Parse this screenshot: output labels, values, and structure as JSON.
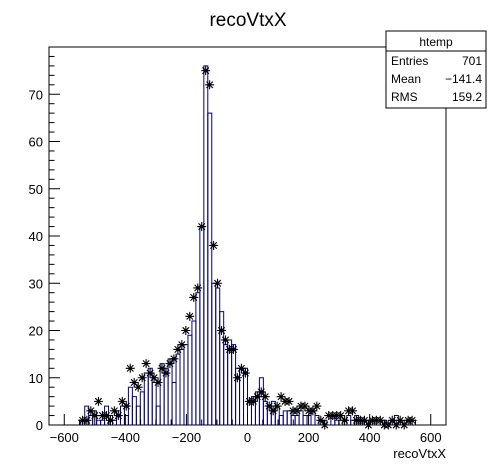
{
  "chart_data": {
    "type": "histogram",
    "title": "recoVtxX",
    "xlabel": "recoVtxX",
    "ylabel": "",
    "xlim": [
      -650,
      650
    ],
    "ylim": [
      0,
      80
    ],
    "xticks": [
      "−600",
      "−400",
      "−200",
      "0",
      "200",
      "400",
      "600"
    ],
    "xtick_values": [
      -600,
      -400,
      -200,
      0,
      200,
      400,
      600
    ],
    "yticks": [
      "0",
      "10",
      "20",
      "30",
      "40",
      "50",
      "60",
      "70"
    ],
    "ytick_values": [
      0,
      10,
      20,
      30,
      40,
      50,
      60,
      70
    ],
    "bin_width": 13,
    "bin_low_edges": [
      -546,
      -533,
      -520,
      -507,
      -494,
      -481,
      -468,
      -455,
      -442,
      -429,
      -416,
      -403,
      -390,
      -377,
      -364,
      -351,
      -338,
      -325,
      -312,
      -299,
      -286,
      -273,
      -260,
      -247,
      -234,
      -221,
      -208,
      -195,
      -182,
      -169,
      -156,
      -143,
      -130,
      -117,
      -104,
      -91,
      -78,
      -65,
      -52,
      -39,
      -26,
      -13,
      0,
      13,
      26,
      39,
      52,
      65,
      78,
      91,
      104,
      117,
      130,
      143,
      156,
      169,
      182,
      195,
      208,
      221,
      234,
      247,
      260,
      273,
      286,
      299,
      312,
      325,
      338,
      351,
      364,
      377,
      390,
      403,
      416,
      429,
      442,
      455,
      468,
      481,
      494,
      507,
      520,
      533
    ],
    "bin_counts": [
      1,
      4,
      2,
      3,
      1,
      1,
      4,
      2,
      1,
      3,
      4,
      2,
      8,
      6,
      4,
      7,
      11,
      12,
      9,
      4,
      13,
      12,
      14,
      9,
      15,
      16,
      17,
      19,
      22,
      28,
      42,
      76,
      66,
      30,
      29,
      24,
      17,
      18,
      17,
      12,
      12,
      12,
      5,
      6,
      7,
      10,
      5,
      4,
      5,
      4,
      2,
      3,
      3,
      2,
      2,
      3,
      2,
      2,
      3,
      2,
      1,
      1,
      0,
      2,
      1,
      1,
      0,
      2,
      1,
      2,
      1,
      1,
      1,
      1,
      0,
      0,
      1,
      0,
      1,
      2,
      1,
      0,
      1,
      0
    ],
    "markers": {
      "x": [
        -540,
        -526,
        -513,
        -500,
        -488,
        -475,
        -462,
        -449,
        -436,
        -423,
        -410,
        -397,
        -384,
        -371,
        -358,
        -345,
        -332,
        -319,
        -306,
        -293,
        -280,
        -267,
        -254,
        -241,
        -228,
        -215,
        -202,
        -189,
        -176,
        -163,
        -150,
        -137,
        -124,
        -111,
        -98,
        -85,
        -72,
        -59,
        -46,
        -33,
        -20,
        -7,
        6,
        19,
        32,
        45,
        58,
        71,
        84,
        97,
        110,
        123,
        136,
        149,
        162,
        175,
        188,
        201,
        214,
        227,
        240,
        253,
        266,
        279,
        292,
        305,
        318,
        331,
        344,
        357,
        370,
        383,
        396,
        409,
        422,
        435,
        448,
        461,
        474,
        487,
        500,
        513,
        526,
        539
      ],
      "y": [
        1,
        1,
        3,
        2,
        5,
        2,
        2,
        1,
        3,
        2,
        5,
        4,
        12,
        9,
        8,
        10,
        13,
        11,
        10,
        9,
        12,
        11,
        13,
        14,
        16,
        17,
        20,
        23,
        27,
        29,
        42,
        75,
        72,
        38,
        30,
        20,
        18,
        16,
        16,
        10,
        12,
        11,
        5,
        5,
        6,
        7,
        6,
        4,
        3,
        4,
        6,
        5,
        5,
        3,
        3,
        4,
        4,
        3,
        3,
        4,
        1,
        0,
        2,
        2,
        2,
        2,
        1,
        3,
        3,
        1,
        1,
        1,
        0,
        1,
        1,
        1,
        0,
        0,
        1,
        0,
        1,
        0,
        1,
        1
      ]
    }
  },
  "stats": {
    "name": "htemp",
    "rows": [
      {
        "label": "Entries",
        "value": "701"
      },
      {
        "label": "Mean",
        "value": "−141.4"
      },
      {
        "label": "RMS",
        "value": "159.2"
      }
    ]
  },
  "colors": {
    "histogram_line": "#000080",
    "marker": "#000000",
    "axis": "#000000"
  }
}
